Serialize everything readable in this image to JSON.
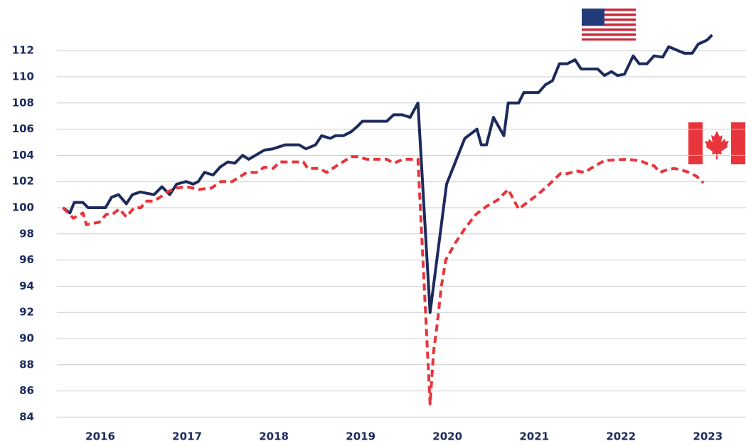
{
  "chart_data": {
    "type": "line",
    "xlim": [
      2016,
      2023.94
    ],
    "ylim": [
      83,
      114
    ],
    "xticks": [
      {
        "value": 2016.5,
        "label": "2016"
      },
      {
        "value": 2017.5,
        "label": "2017"
      },
      {
        "value": 2018.5,
        "label": "2018"
      },
      {
        "value": 2019.5,
        "label": "2019"
      },
      {
        "value": 2020.5,
        "label": "2020"
      },
      {
        "value": 2021.5,
        "label": "2021"
      },
      {
        "value": 2022.5,
        "label": "2022"
      },
      {
        "value": 2023.5,
        "label": "2023"
      }
    ],
    "yticks": [
      84,
      86,
      88,
      90,
      92,
      94,
      96,
      98,
      100,
      102,
      104,
      106,
      108,
      110,
      112
    ],
    "grid": true,
    "series": [
      {
        "color": "#1c2a5c",
        "line_style": "solid",
        "x": [
          2016.07,
          2016.15,
          2016.2,
          2016.3,
          2016.36,
          2016.56,
          2016.63,
          2016.71,
          2016.8,
          2016.87,
          2016.96,
          2017.12,
          2017.21,
          2017.3,
          2017.38,
          2017.49,
          2017.57,
          2017.63,
          2017.7,
          2017.8,
          2017.88,
          2017.97,
          2018.05,
          2018.14,
          2018.21,
          2018.39,
          2018.49,
          2018.63,
          2018.79,
          2018.87,
          2018.98,
          2019.05,
          2019.15,
          2019.21,
          2019.3,
          2019.39,
          2019.46,
          2019.52,
          2019.8,
          2019.88,
          2019.98,
          2020.07,
          2020.16,
          2020.3,
          2020.49,
          2020.7,
          2020.84,
          2020.89,
          2020.95,
          2021.03,
          2021.15,
          2021.2,
          2021.32,
          2021.38,
          2021.55,
          2021.63,
          2021.71,
          2021.79,
          2021.88,
          2021.97,
          2022.04,
          2022.23,
          2022.31,
          2022.39,
          2022.46,
          2022.54,
          2022.64,
          2022.71,
          2022.8,
          2022.88,
          2022.98,
          2023.05,
          2023.23,
          2023.32,
          2023.39,
          2023.49,
          2023.55
        ],
        "values": [
          100.0,
          99.6,
          100.4,
          100.4,
          100.0,
          100.0,
          100.8,
          101.0,
          100.3,
          101.0,
          101.2,
          101.0,
          101.6,
          101.0,
          101.8,
          102.0,
          101.8,
          102.0,
          102.7,
          102.5,
          103.1,
          103.5,
          103.4,
          104.0,
          103.7,
          104.4,
          104.5,
          104.8,
          104.8,
          104.5,
          104.8,
          105.5,
          105.3,
          105.5,
          105.5,
          105.8,
          106.2,
          106.6,
          106.6,
          107.1,
          107.1,
          106.9,
          108.0,
          92.0,
          101.8,
          105.3,
          106.0,
          104.8,
          104.8,
          106.9,
          105.5,
          108.0,
          108.0,
          108.8,
          108.8,
          109.4,
          109.7,
          111.0,
          111.0,
          111.3,
          110.6,
          110.6,
          110.1,
          110.4,
          110.1,
          110.2,
          111.6,
          111.0,
          111.0,
          111.6,
          111.5,
          112.3,
          111.8,
          111.8,
          112.5,
          112.8,
          113.2
        ]
      },
      {
        "color": "#e8353b",
        "line_style": "dashed",
        "x": [
          2016.07,
          2016.19,
          2016.3,
          2016.34,
          2016.49,
          2016.57,
          2016.64,
          2016.72,
          2016.8,
          2016.89,
          2016.97,
          2017.02,
          2017.11,
          2017.19,
          2017.27,
          2017.38,
          2017.49,
          2017.64,
          2017.78,
          2017.89,
          2018.02,
          2018.19,
          2018.3,
          2018.39,
          2018.49,
          2018.57,
          2018.84,
          2018.89,
          2019.02,
          2019.11,
          2019.2,
          2019.39,
          2019.47,
          2019.57,
          2019.8,
          2019.88,
          2019.99,
          2020.16,
          2020.3,
          2020.34,
          2020.38,
          2020.43,
          2020.48,
          2020.59,
          2020.71,
          2020.83,
          2020.95,
          2021.08,
          2021.2,
          2021.32,
          2021.44,
          2021.54,
          2021.66,
          2021.8,
          2021.88,
          2021.99,
          2022.08,
          2022.2,
          2022.31,
          2022.56,
          2022.72,
          2022.82,
          2022.88,
          2022.95,
          2023.03,
          2023.11,
          2023.19,
          2023.28,
          2023.37,
          2023.45
        ],
        "values": [
          100.0,
          99.2,
          99.6,
          98.7,
          98.9,
          99.5,
          99.5,
          99.9,
          99.3,
          100.0,
          100.0,
          100.5,
          100.5,
          100.8,
          101.2,
          101.5,
          101.6,
          101.4,
          101.5,
          102.0,
          102.0,
          102.7,
          102.7,
          103.1,
          103.0,
          103.5,
          103.5,
          103.0,
          103.0,
          102.7,
          103.1,
          103.9,
          103.9,
          103.7,
          103.7,
          103.4,
          103.7,
          103.7,
          85.0,
          89.0,
          91.0,
          94.0,
          96.0,
          97.3,
          98.5,
          99.5,
          100.1,
          100.6,
          101.4,
          99.9,
          100.5,
          101.0,
          101.7,
          102.6,
          102.6,
          102.8,
          102.7,
          103.2,
          103.6,
          103.7,
          103.6,
          103.3,
          103.2,
          102.7,
          102.9,
          103.0,
          102.9,
          102.7,
          102.4,
          101.9
        ]
      }
    ]
  }
}
